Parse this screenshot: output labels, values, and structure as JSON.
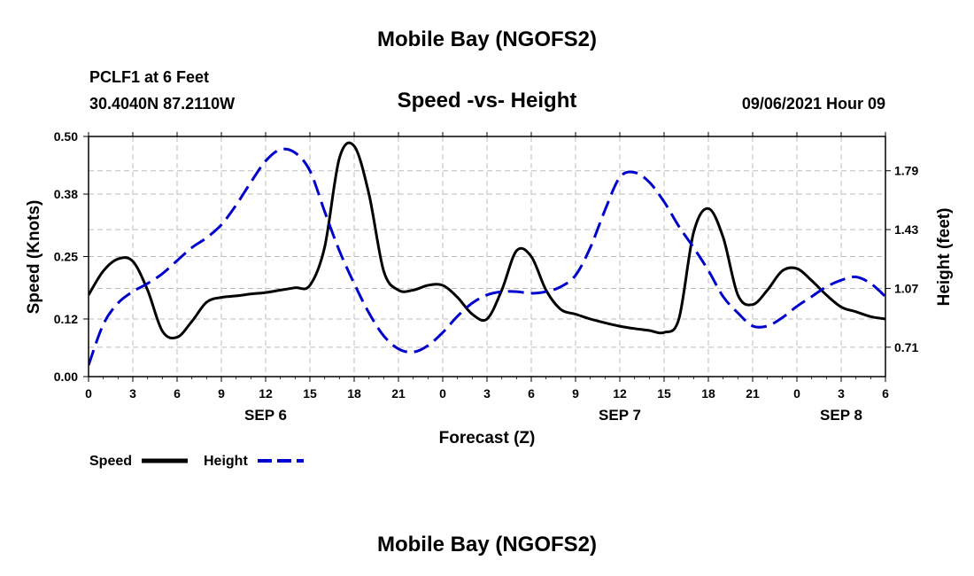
{
  "header": {
    "title": "Mobile Bay (NGOFS2)",
    "station": "PCLF1 at 6 Feet",
    "coords": "30.4040N  87.2110W",
    "date": "09/06/2021 Hour 09",
    "footer_title": "Mobile Bay (NGOFS2)"
  },
  "chart_data": {
    "type": "line",
    "title": "Speed -vs- Height",
    "xlabel": "Forecast (Z)",
    "ylabel_left": "Speed (Knots)",
    "ylabel_right": "Height (feet)",
    "x_range_hours": [
      0,
      54
    ],
    "ylim_left": [
      0,
      0.5
    ],
    "ylim_right": [
      0.53,
      2.0
    ],
    "left_ticks": [
      "0.00",
      "0.12",
      "0.25",
      "0.38",
      "0.50"
    ],
    "right_ticks": [
      "0.71",
      "1.07",
      "1.43",
      "1.79"
    ],
    "x_tick_labels": [
      "0",
      "3",
      "6",
      "9",
      "12",
      "15",
      "18",
      "21",
      "0",
      "3",
      "6",
      "9",
      "12",
      "15",
      "18",
      "21",
      "0",
      "3",
      "6"
    ],
    "day_labels": [
      {
        "label": "SEP 6",
        "hour": 12
      },
      {
        "label": "SEP 7",
        "hour": 36
      },
      {
        "label": "SEP 8",
        "hour": 51
      }
    ],
    "grid": true,
    "series": [
      {
        "name": "Speed",
        "color": "#000000",
        "style": "solid",
        "axis": "left",
        "x": [
          0,
          1,
          2,
          3,
          4,
          5,
          6,
          7,
          8,
          9,
          10,
          11,
          12,
          13,
          14,
          15,
          16,
          17,
          18,
          19,
          20,
          21,
          22,
          23,
          24,
          25,
          26,
          27,
          28,
          29,
          30,
          31,
          32,
          33,
          34,
          35,
          36,
          37,
          38,
          39,
          40,
          41,
          42,
          43,
          44,
          45,
          46,
          47,
          48,
          49,
          50,
          51,
          52,
          53,
          54
        ],
        "values": [
          0.17,
          0.22,
          0.245,
          0.24,
          0.18,
          0.095,
          0.082,
          0.115,
          0.155,
          0.165,
          0.168,
          0.172,
          0.175,
          0.18,
          0.185,
          0.19,
          0.27,
          0.455,
          0.48,
          0.38,
          0.22,
          0.18,
          0.18,
          0.19,
          0.19,
          0.165,
          0.13,
          0.12,
          0.18,
          0.262,
          0.25,
          0.18,
          0.14,
          0.13,
          0.12,
          0.112,
          0.105,
          0.1,
          0.096,
          0.092,
          0.12,
          0.3,
          0.35,
          0.29,
          0.17,
          0.15,
          0.18,
          0.22,
          0.225,
          0.2,
          0.17,
          0.145,
          0.135,
          0.125,
          0.12
        ]
      },
      {
        "name": "Height",
        "color": "#0000cc",
        "style": "dashed",
        "axis": "right",
        "x": [
          0,
          1,
          2,
          3,
          4,
          5,
          6,
          7,
          8,
          9,
          10,
          11,
          12,
          13,
          14,
          15,
          16,
          17,
          18,
          19,
          20,
          21,
          22,
          23,
          24,
          25,
          26,
          27,
          28,
          29,
          30,
          31,
          32,
          33,
          34,
          35,
          36,
          37,
          38,
          39,
          40,
          41,
          42,
          43,
          44,
          45,
          46,
          47,
          48,
          49,
          50,
          51,
          52,
          53,
          54
        ],
        "values": [
          0.6,
          0.85,
          0.98,
          1.05,
          1.1,
          1.16,
          1.24,
          1.32,
          1.38,
          1.46,
          1.58,
          1.72,
          1.85,
          1.92,
          1.9,
          1.79,
          1.54,
          1.3,
          1.1,
          0.92,
          0.78,
          0.7,
          0.68,
          0.72,
          0.8,
          0.9,
          0.98,
          1.03,
          1.05,
          1.05,
          1.04,
          1.05,
          1.08,
          1.15,
          1.32,
          1.55,
          1.75,
          1.78,
          1.72,
          1.6,
          1.45,
          1.32,
          1.18,
          1.02,
          0.92,
          0.84,
          0.84,
          0.89,
          0.96,
          1.02,
          1.08,
          1.12,
          1.14,
          1.1,
          1.02
        ]
      }
    ]
  },
  "legend": {
    "speed_label": "Speed",
    "height_label": "Height"
  }
}
